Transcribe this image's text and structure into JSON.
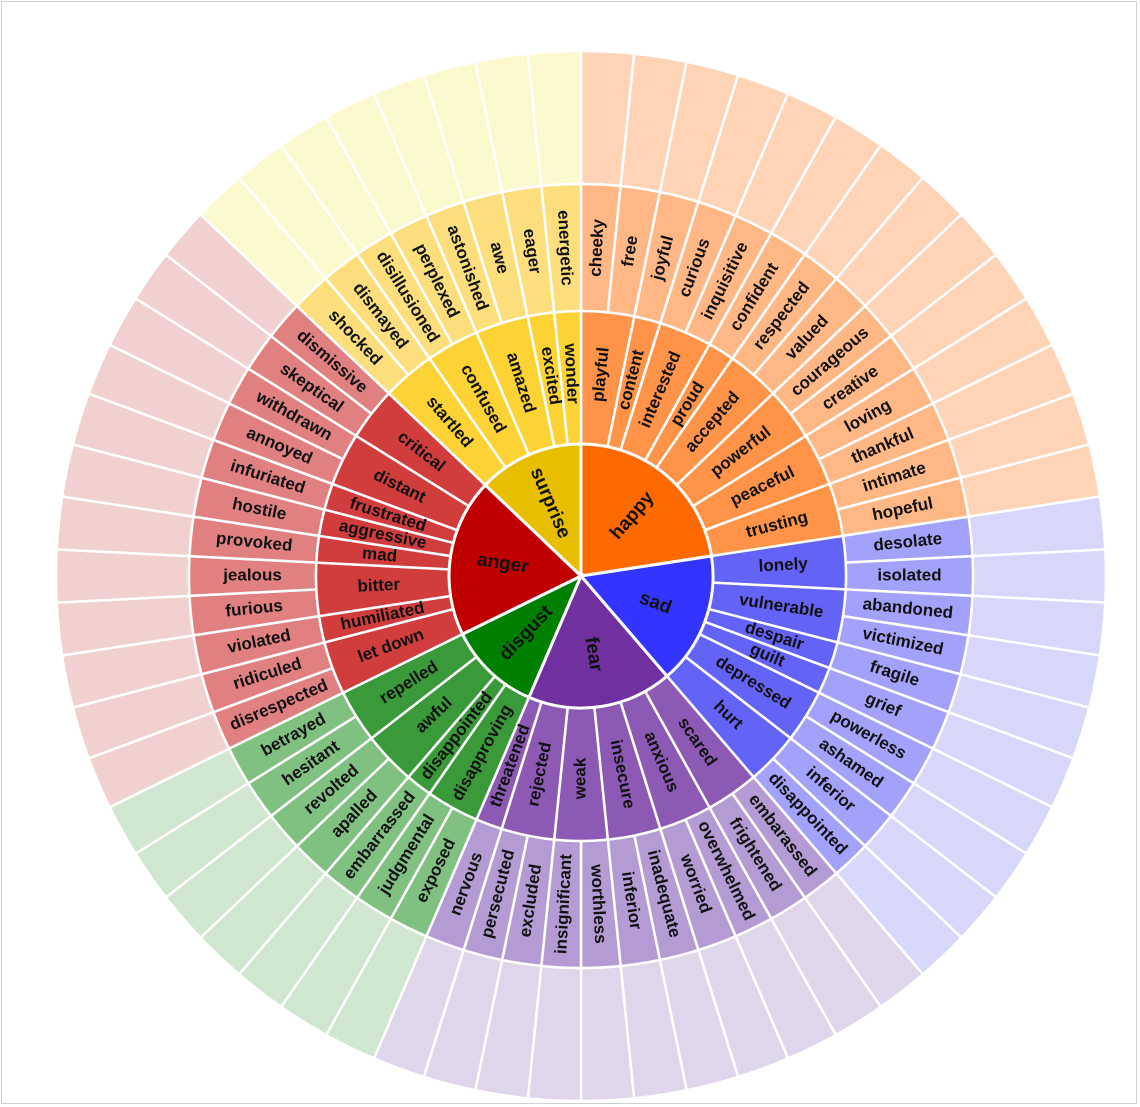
{
  "wheel": {
    "emotions": [
      {
        "core": "happy",
        "colors": {
          "core": "#ff6a00",
          "mid": "#ff9448",
          "outer": "#ffb785",
          "rim": "#ffd3b6"
        },
        "groups": [
          {
            "mid": "playful",
            "outer": [
              "cheeky",
              "free"
            ]
          },
          {
            "mid": "content",
            "outer": [
              "joyful"
            ]
          },
          {
            "mid": "interested",
            "outer": [
              "curious",
              "inquisitive"
            ]
          },
          {
            "mid": "proud",
            "outer": [
              "confident"
            ]
          },
          {
            "mid": "accepted",
            "outer": [
              "respected",
              "valued"
            ]
          },
          {
            "mid": "powerful",
            "outer": [
              "courageous",
              "creative"
            ]
          },
          {
            "mid": "peaceful",
            "outer": [
              "loving",
              "thankful"
            ]
          },
          {
            "mid": "trusting",
            "outer": [
              "intimate",
              "hopeful"
            ]
          }
        ]
      },
      {
        "core": "sad",
        "colors": {
          "core": "#3434ff",
          "mid": "#6363f8",
          "outer": "#a2a2fa",
          "rim": "#d7d7fb"
        },
        "groups": [
          {
            "mid": "lonely",
            "outer": [
              "desolate",
              "isolated"
            ]
          },
          {
            "mid": "vulnerable",
            "outer": [
              "abandoned",
              "victimized"
            ]
          },
          {
            "mid": "despair",
            "outer": [
              "fragile"
            ]
          },
          {
            "mid": "guilt",
            "outer": [
              "grief"
            ]
          },
          {
            "mid": "depressed",
            "outer": [
              "powerless",
              "ashamed"
            ]
          },
          {
            "mid": "hurt",
            "outer": [
              "inferior",
              "disappointed"
            ]
          }
        ]
      },
      {
        "core": "fear",
        "colors": {
          "core": "#7030a0",
          "mid": "#8c59b5",
          "outer": "#b59bd3",
          "rim": "#e0d6ec"
        },
        "groups": [
          {
            "mid": "scared",
            "outer": [
              "embarassed",
              "frightened"
            ]
          },
          {
            "mid": "anxious",
            "outer": [
              "overwhelmed",
              "worried"
            ]
          },
          {
            "mid": "insecure",
            "outer": [
              "inadequate",
              "inferior"
            ]
          },
          {
            "mid": "weak",
            "outer": [
              "worthless",
              "insignificant"
            ]
          },
          {
            "mid": "rejected",
            "outer": [
              "excluded",
              "persecuted"
            ]
          },
          {
            "mid": "threatened",
            "outer": [
              "nervous"
            ]
          }
        ]
      },
      {
        "core": "disgust",
        "colors": {
          "core": "#008000",
          "mid": "#3a9a3a",
          "outer": "#80c080",
          "rim": "#cfe6cf"
        },
        "groups": [
          {
            "mid": "disapproving",
            "outer": [
              "exposed",
              "judgmental"
            ]
          },
          {
            "mid": "disappointed",
            "outer": [
              "embarrassed"
            ]
          },
          {
            "mid": "awful",
            "outer": [
              "apalled",
              "revolted"
            ]
          },
          {
            "mid": "repelled",
            "outer": [
              "hesitant",
              "betrayed"
            ]
          }
        ]
      },
      {
        "core": "anger",
        "colors": {
          "core": "#c00000",
          "mid": "#d13c3c",
          "outer": "#e08080",
          "rim": "#f1d0d0"
        },
        "groups": [
          {
            "mid": "let down",
            "outer": [
              "disrespected",
              "ridiculed"
            ]
          },
          {
            "mid": "humiliated",
            "outer": [
              "violated"
            ]
          },
          {
            "mid": "bitter",
            "outer": [
              "furious",
              "jealous"
            ]
          },
          {
            "mid": "mad",
            "outer": [
              "provoked"
            ]
          },
          {
            "mid": "aggressive",
            "outer": [
              "hostile"
            ]
          },
          {
            "mid": "frustrated",
            "outer": [
              "infuriated"
            ]
          },
          {
            "mid": "distant",
            "outer": [
              "annoyed",
              "withdrawn"
            ]
          },
          {
            "mid": "critical",
            "outer": [
              "skeptical",
              "dismissive"
            ]
          }
        ]
      },
      {
        "core": "surprise",
        "colors": {
          "core": "#e8be00",
          "mid": "#fdd234",
          "outer": "#fcdf7c",
          "rim": "#fdf9cf"
        },
        "groups": [
          {
            "mid": "startled",
            "outer": [
              "shocked",
              "dismayed"
            ]
          },
          {
            "mid": "confused",
            "outer": [
              "disillusioned",
              "perplexed"
            ]
          },
          {
            "mid": "amazed",
            "outer": [
              "astonished",
              "awe"
            ]
          },
          {
            "mid": "excited",
            "outer": [
              "eager"
            ]
          },
          {
            "mid": "wonder",
            "outer": [
              "energetic"
            ]
          }
        ]
      }
    ]
  }
}
